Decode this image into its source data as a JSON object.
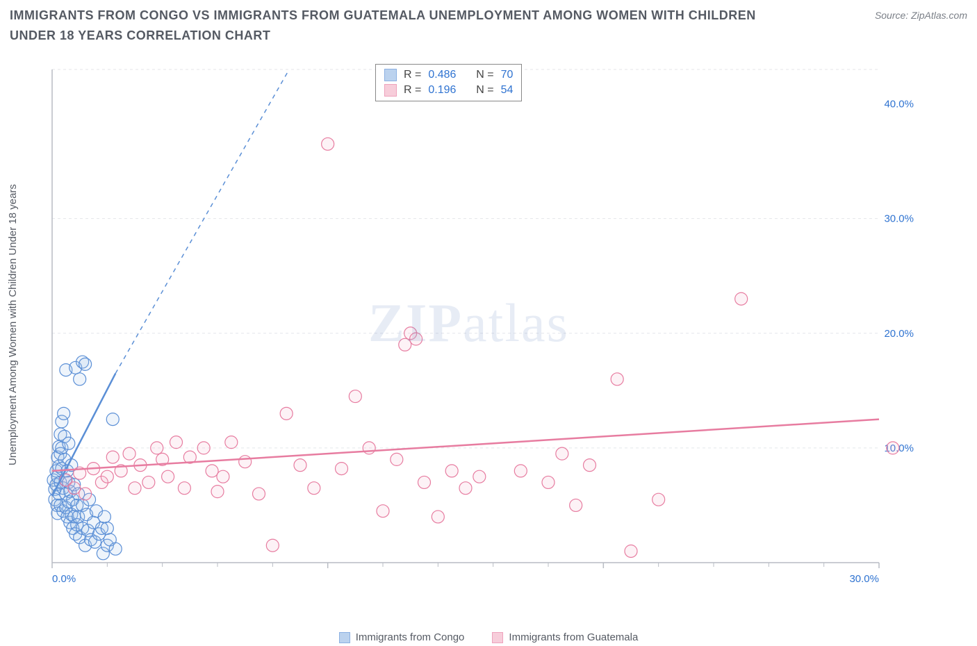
{
  "title": "IMMIGRANTS FROM CONGO VS IMMIGRANTS FROM GUATEMALA UNEMPLOYMENT AMONG WOMEN WITH CHILDREN UNDER 18 YEARS CORRELATION CHART",
  "source": "Source: ZipAtlas.com",
  "y_axis_label": "Unemployment Among Women with Children Under 18 years",
  "watermark_a": "ZIP",
  "watermark_b": "atlas",
  "chart": {
    "type": "scatter",
    "xlim": [
      0,
      30
    ],
    "ylim": [
      0,
      43
    ],
    "x_ticks": [
      0,
      10,
      20,
      30
    ],
    "x_tick_labels": [
      "0.0%",
      "",
      "",
      "30.0%"
    ],
    "y_ticks": [
      10,
      20,
      30,
      40
    ],
    "y_tick_labels": [
      "10.0%",
      "20.0%",
      "30.0%",
      "40.0%"
    ],
    "y_grid": [
      10,
      20,
      30,
      43
    ],
    "x_minor_ticks": [
      2,
      4,
      6,
      8,
      12,
      14,
      16,
      18,
      22,
      24,
      26,
      28
    ],
    "background_color": "#ffffff",
    "grid_color": "#e4e6ea",
    "axis_color": "#b8bcc4",
    "tick_label_color_x": "#2f73d1",
    "tick_label_color_y": "#2f73d1",
    "tick_fontsize": 15,
    "marker_radius": 9,
    "marker_stroke_width": 1.2,
    "marker_fill_opacity": 0.18
  },
  "series": [
    {
      "id": "congo",
      "label": "Immigrants from Congo",
      "color_stroke": "#5b8fd6",
      "color_fill": "#9fc0e8",
      "R": "0.486",
      "N": "70",
      "trend": {
        "x1": 0,
        "y1": 5.8,
        "x2": 2.3,
        "y2": 16.5,
        "dash_to_x": 8.6,
        "dash_to_y": 43
      },
      "points": [
        [
          0.05,
          7.2
        ],
        [
          0.1,
          6.4
        ],
        [
          0.1,
          5.5
        ],
        [
          0.15,
          8.0
        ],
        [
          0.15,
          6.8
        ],
        [
          0.18,
          5.0
        ],
        [
          0.2,
          9.2
        ],
        [
          0.2,
          7.5
        ],
        [
          0.2,
          4.3
        ],
        [
          0.25,
          10.1
        ],
        [
          0.25,
          8.4
        ],
        [
          0.25,
          6.0
        ],
        [
          0.3,
          11.2
        ],
        [
          0.3,
          9.5
        ],
        [
          0.3,
          7.0
        ],
        [
          0.3,
          5.0
        ],
        [
          0.35,
          12.3
        ],
        [
          0.35,
          10.0
        ],
        [
          0.35,
          8.2
        ],
        [
          0.4,
          6.5
        ],
        [
          0.4,
          4.5
        ],
        [
          0.42,
          13.0
        ],
        [
          0.45,
          11.0
        ],
        [
          0.45,
          9.0
        ],
        [
          0.48,
          7.2
        ],
        [
          0.5,
          16.8
        ],
        [
          0.5,
          6.0
        ],
        [
          0.5,
          4.8
        ],
        [
          0.55,
          4.0
        ],
        [
          0.55,
          8.0
        ],
        [
          0.6,
          10.4
        ],
        [
          0.6,
          7.0
        ],
        [
          0.6,
          5.3
        ],
        [
          0.65,
          3.5
        ],
        [
          0.65,
          6.2
        ],
        [
          0.7,
          8.5
        ],
        [
          0.7,
          4.2
        ],
        [
          0.75,
          5.5
        ],
        [
          0.75,
          3.0
        ],
        [
          0.8,
          6.8
        ],
        [
          0.8,
          4.0
        ],
        [
          0.85,
          17.0
        ],
        [
          0.85,
          2.5
        ],
        [
          0.9,
          5.0
        ],
        [
          0.9,
          3.3
        ],
        [
          0.95,
          6.0
        ],
        [
          0.95,
          4.0
        ],
        [
          1.0,
          16.0
        ],
        [
          1.0,
          2.2
        ],
        [
          1.1,
          17.5
        ],
        [
          1.1,
          5.0
        ],
        [
          1.1,
          3.0
        ],
        [
          1.2,
          17.3
        ],
        [
          1.2,
          1.5
        ],
        [
          1.25,
          4.2
        ],
        [
          1.3,
          2.8
        ],
        [
          1.35,
          5.5
        ],
        [
          1.4,
          2.0
        ],
        [
          1.5,
          3.5
        ],
        [
          1.55,
          1.8
        ],
        [
          1.6,
          4.5
        ],
        [
          1.7,
          2.5
        ],
        [
          1.8,
          3.0
        ],
        [
          1.85,
          0.8
        ],
        [
          1.9,
          4.0
        ],
        [
          2.0,
          1.5
        ],
        [
          2.0,
          3.0
        ],
        [
          2.1,
          2.0
        ],
        [
          2.2,
          12.5
        ],
        [
          2.3,
          1.2
        ]
      ]
    },
    {
      "id": "guatemala",
      "label": "Immigrants from Guatemala",
      "color_stroke": "#e77ca0",
      "color_fill": "#f4b8cb",
      "R": "0.196",
      "N": "54",
      "trend": {
        "x1": 0,
        "y1": 8.0,
        "x2": 30,
        "y2": 12.5
      },
      "points": [
        [
          0.5,
          7.2
        ],
        [
          0.8,
          6.5
        ],
        [
          1.0,
          7.8
        ],
        [
          1.2,
          6.0
        ],
        [
          1.5,
          8.2
        ],
        [
          1.8,
          7.0
        ],
        [
          2.0,
          7.5
        ],
        [
          2.2,
          9.2
        ],
        [
          2.5,
          8.0
        ],
        [
          2.8,
          9.5
        ],
        [
          3.0,
          6.5
        ],
        [
          3.2,
          8.5
        ],
        [
          3.5,
          7.0
        ],
        [
          3.8,
          10.0
        ],
        [
          4.0,
          9.0
        ],
        [
          4.5,
          10.5
        ],
        [
          4.8,
          6.5
        ],
        [
          5.0,
          9.2
        ],
        [
          5.5,
          10.0
        ],
        [
          5.8,
          8.0
        ],
        [
          6.0,
          6.2
        ],
        [
          6.5,
          10.5
        ],
        [
          7.0,
          8.8
        ],
        [
          7.5,
          6.0
        ],
        [
          8.0,
          1.5
        ],
        [
          8.5,
          13.0
        ],
        [
          9.0,
          8.5
        ],
        [
          9.5,
          6.5
        ],
        [
          10.0,
          36.5
        ],
        [
          10.5,
          8.2
        ],
        [
          11.0,
          14.5
        ],
        [
          11.5,
          10.0
        ],
        [
          12.0,
          4.5
        ],
        [
          12.5,
          9.0
        ],
        [
          12.8,
          19.0
        ],
        [
          13.0,
          20.0
        ],
        [
          13.2,
          19.5
        ],
        [
          13.5,
          7.0
        ],
        [
          14.0,
          4.0
        ],
        [
          14.5,
          8.0
        ],
        [
          15.0,
          6.5
        ],
        [
          15.5,
          7.5
        ],
        [
          17.0,
          8.0
        ],
        [
          18.0,
          7.0
        ],
        [
          18.5,
          9.5
        ],
        [
          19.0,
          5.0
        ],
        [
          19.5,
          8.5
        ],
        [
          20.5,
          16.0
        ],
        [
          21.0,
          1.0
        ],
        [
          22.0,
          5.5
        ],
        [
          25.0,
          23.0
        ],
        [
          30.5,
          10.0
        ],
        [
          6.2,
          7.5
        ],
        [
          4.2,
          7.5
        ]
      ]
    }
  ],
  "stats_labels": {
    "R": "R =",
    "N": "N ="
  }
}
